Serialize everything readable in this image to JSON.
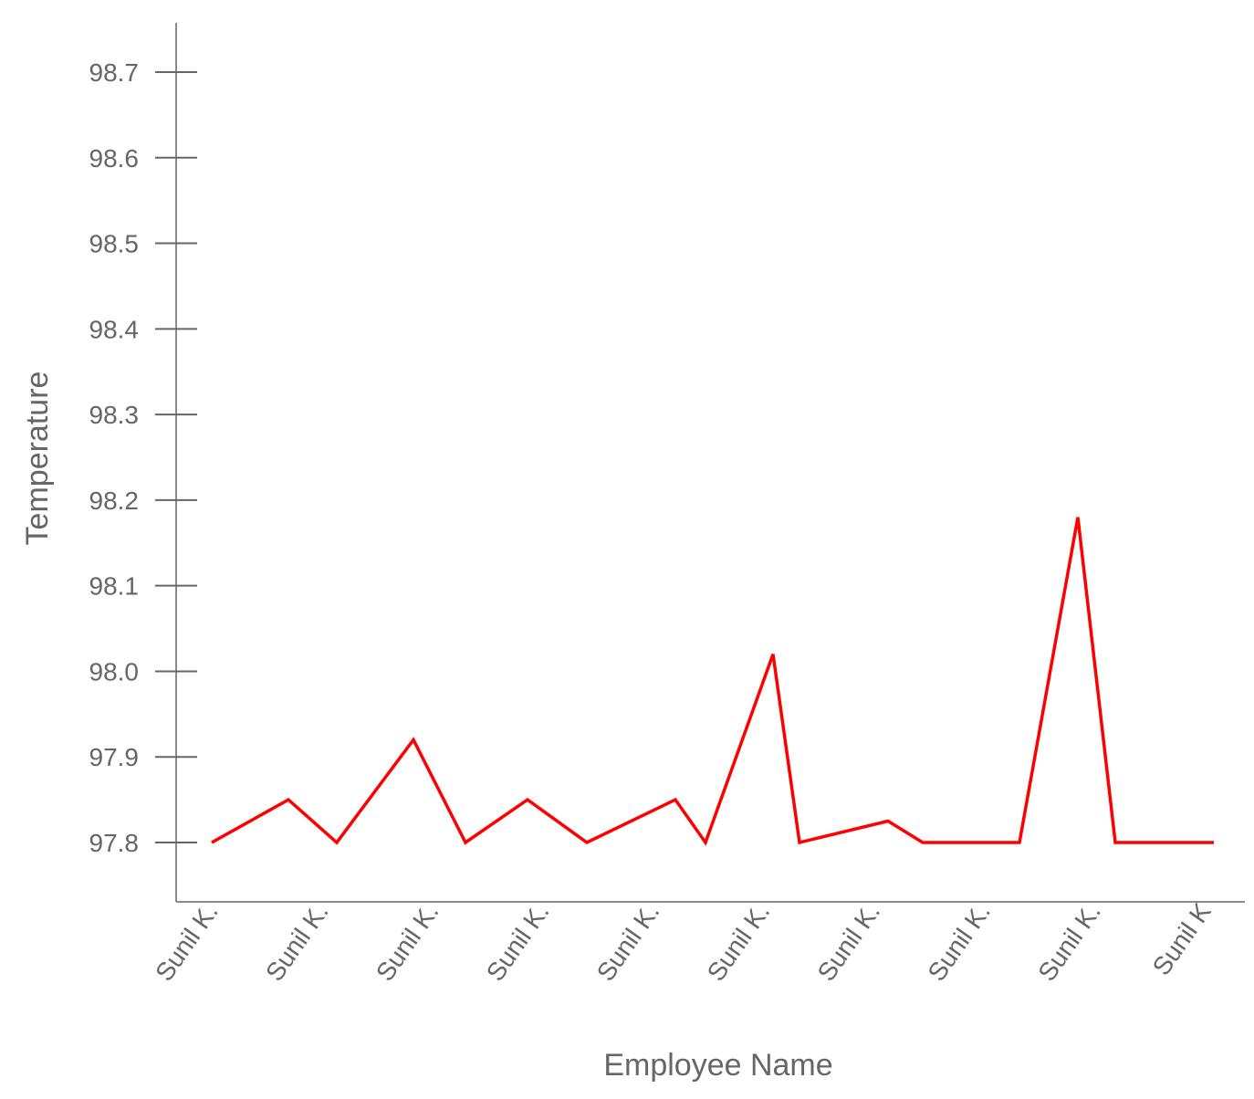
{
  "chart_data": {
    "type": "line",
    "xlabel": "Employee Name",
    "ylabel": "Temperature",
    "ylim": [
      97.73,
      98.76
    ],
    "y_ticks": [
      97.8,
      97.9,
      98.0,
      98.1,
      98.2,
      98.3,
      98.4,
      98.5,
      98.6,
      98.7
    ],
    "x_tick_labels": [
      "Sunil K.",
      "Sunil K.",
      "Sunil K.",
      "Sunil K.",
      "Sunil K.",
      "Sunil K.",
      "Sunil K.",
      "Sunil K.",
      "Sunil K.",
      "Sunil K"
    ],
    "grid": false,
    "legend": "none",
    "series": [
      {
        "color": "#ff0000",
        "values": [
          97.8,
          97.85,
          97.8,
          97.92,
          97.8,
          97.85,
          97.8,
          97.85,
          97.8,
          98.02,
          97.8,
          97.825,
          97.8,
          97.8,
          97.8,
          98.18,
          97.8,
          97.8,
          97.8
        ]
      }
    ]
  }
}
